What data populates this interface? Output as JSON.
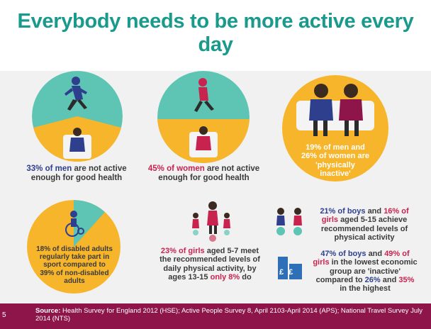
{
  "title": "Everybody needs to be more active every day",
  "panels": {
    "men": {
      "pct": "33% of men",
      "rest": "are not active enough for good health"
    },
    "women": {
      "pct": "45% of women",
      "rest": "are not active enough for good health"
    },
    "inactive": {
      "line1": "19% of men and",
      "line2": "26% of women are",
      "line3": "'physically",
      "line4": "inactive'"
    },
    "disabled": {
      "text": "18% of disabled adults regularly take part in sport compared to 39% of non-disabled adults"
    },
    "girls_5_7": {
      "pct": "23% of girls",
      "mid": "aged 5-7 meet the recommended levels of daily physical activity, by ages 13-15",
      "pct2": "only 8%",
      "end": "do"
    },
    "boys_girls_5_15": {
      "boys": "21% of boys",
      "and": "and",
      "girls": "16%",
      "girls2": "of girls",
      "rest": "aged 5-15 achieve recommended levels of physical activity"
    },
    "economic": {
      "boys": "47% of boys",
      "and": "and",
      "girls": "49%",
      "girls2": "of girls",
      "mid": "in the lowest economic group are 'inactive' compared to",
      "p1": "26%",
      "and2": "and",
      "p2": "35%",
      "end": "in the highest",
      "currency_symbols": "£ £"
    }
  },
  "footer": {
    "page_number": "5",
    "source_label": "Source:",
    "source_text": "Health Survey for England 2012 (HSE); Active People Survey 8, April 2103-April 2014 (APS); National Travel Survey July 2014 (NTS)"
  },
  "colors": {
    "title": "#1a9a8c",
    "teal": "#5ec4b4",
    "amber": "#f7b52b",
    "navy": "#2e3f8e",
    "crimson": "#c8234f",
    "footer": "#8e1549",
    "background": "#f1f1f1"
  }
}
